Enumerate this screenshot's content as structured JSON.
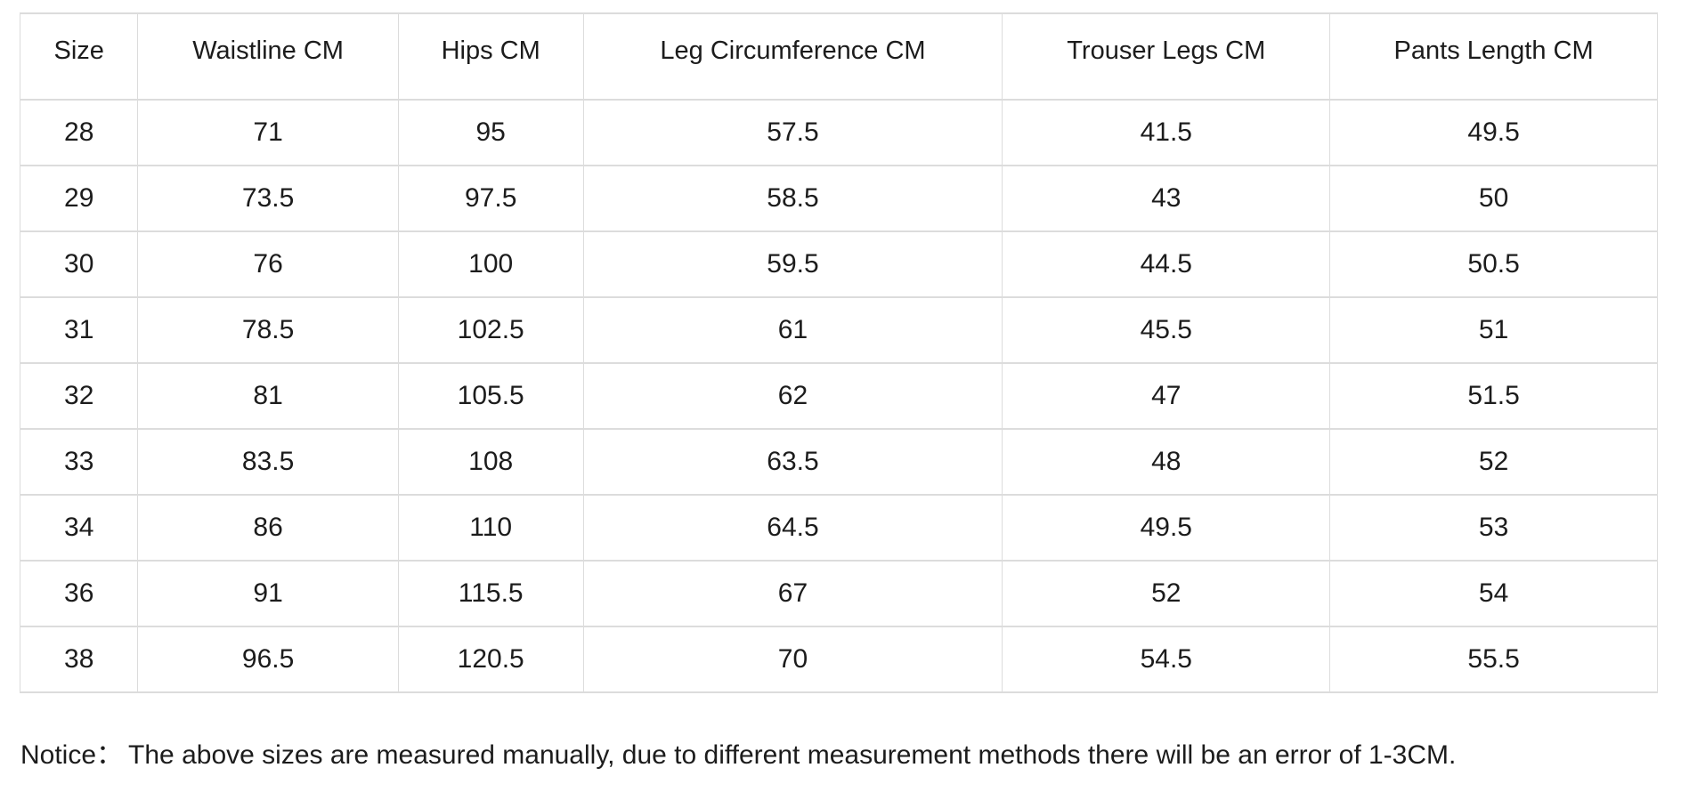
{
  "size_chart": {
    "columns": [
      "Size",
      "Waistline CM",
      "Hips CM",
      "Leg Circumference CM",
      "Trouser Legs CM",
      "Pants Length CM"
    ],
    "rows": [
      [
        "28",
        "71",
        "95",
        "57.5",
        "41.5",
        "49.5"
      ],
      [
        "29",
        "73.5",
        "97.5",
        "58.5",
        "43",
        "50"
      ],
      [
        "30",
        "76",
        "100",
        "59.5",
        "44.5",
        "50.5"
      ],
      [
        "31",
        "78.5",
        "102.5",
        "61",
        "45.5",
        "51"
      ],
      [
        "32",
        "81",
        "105.5",
        "62",
        "47",
        "51.5"
      ],
      [
        "33",
        "83.5",
        "108",
        "63.5",
        "48",
        "52"
      ],
      [
        "34",
        "86",
        "110",
        "64.5",
        "49.5",
        "53"
      ],
      [
        "36",
        "91",
        "115.5",
        "67",
        "52",
        "54"
      ],
      [
        "38",
        "96.5",
        "120.5",
        "70",
        "54.5",
        "55.5"
      ]
    ]
  },
  "notice": {
    "label": "Notice：",
    "text": "The above sizes are measured manually, due to different measurement methods there will be an error of 1-3CM."
  },
  "colors": {
    "border": "#dcdcdc",
    "text": "#1c1c1c",
    "background": "#ffffff"
  }
}
